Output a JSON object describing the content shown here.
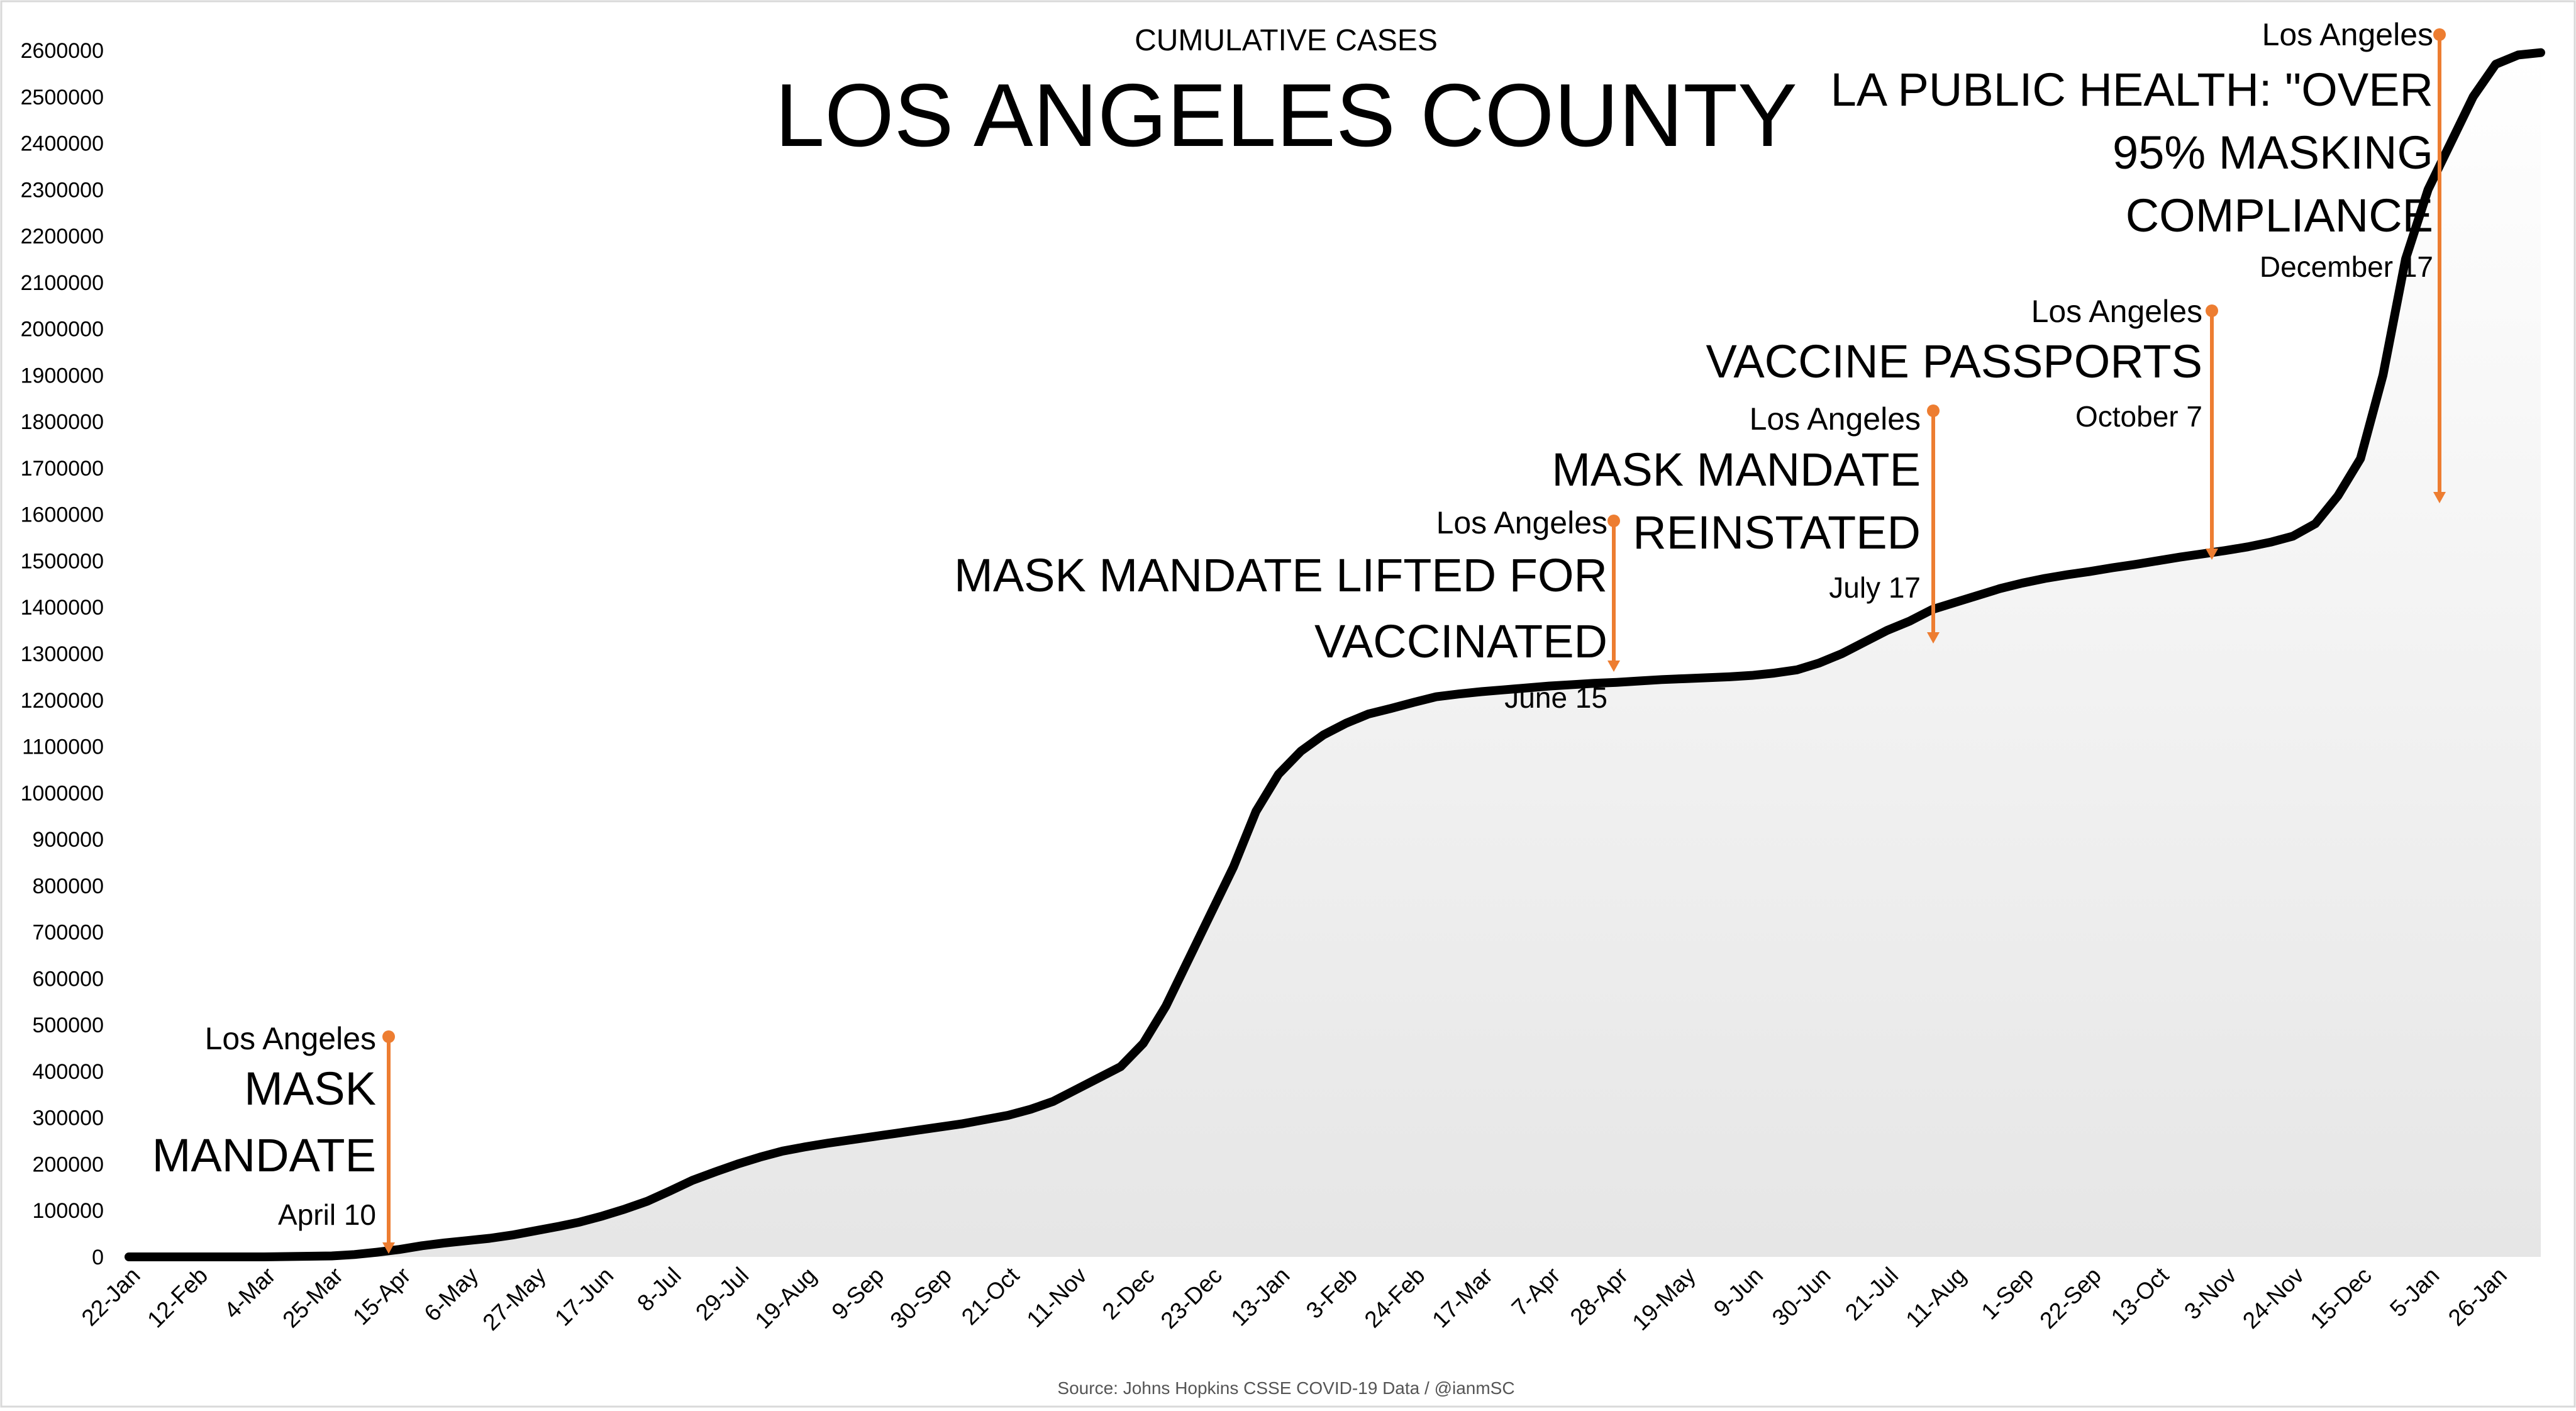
{
  "chart_data": {
    "type": "area",
    "subtitle": "CUMULATIVE CASES",
    "title": "LOS ANGELES COUNTY",
    "source": "Source: Johns Hopkins CSSE COVID-19 Data / @ianmSC",
    "xlabel": "",
    "ylabel": "",
    "ylim": [
      0,
      2600000
    ],
    "grid": false,
    "legend": "none",
    "x_ticks": [
      "22-Jan",
      "12-Feb",
      "4-Mar",
      "25-Mar",
      "15-Apr",
      "6-May",
      "27-May",
      "17-Jun",
      "8-Jul",
      "29-Jul",
      "19-Aug",
      "9-Sep",
      "30-Sep",
      "21-Oct",
      "11-Nov",
      "2-Dec",
      "23-Dec",
      "13-Jan",
      "3-Feb",
      "24-Feb",
      "17-Mar",
      "7-Apr",
      "28-Apr",
      "19-May",
      "9-Jun",
      "30-Jun",
      "21-Jul",
      "11-Aug",
      "1-Sep",
      "22-Sep",
      "13-Oct",
      "3-Nov",
      "24-Nov",
      "15-Dec",
      "5-Jan",
      "26-Jan"
    ],
    "y_ticks": [
      "0",
      "100000",
      "200000",
      "300000",
      "400000",
      "500000",
      "600000",
      "700000",
      "800000",
      "900000",
      "1000000",
      "1100000",
      "1200000",
      "1300000",
      "1400000",
      "1500000",
      "1600000",
      "1700000",
      "1800000",
      "1900000",
      "2000000",
      "2100000",
      "2200000",
      "2300000",
      "2400000",
      "2500000",
      "2600000"
    ],
    "series": [
      {
        "x": [
          0,
          21,
          42,
          63,
          70,
          77,
          84,
          91,
          98,
          105,
          112,
          119,
          126,
          133,
          140,
          147,
          154,
          161,
          168,
          175,
          182,
          189,
          196,
          203,
          210,
          217,
          224,
          231,
          238,
          245,
          252,
          259,
          266,
          273,
          280,
          287,
          294,
          301,
          308,
          315,
          322,
          329,
          336,
          343,
          350,
          357,
          364,
          371,
          378,
          385,
          392,
          399,
          406,
          413,
          420,
          427,
          434,
          441,
          448,
          455,
          462,
          469,
          476,
          483,
          490,
          497,
          504,
          511,
          518,
          525,
          532,
          539,
          546,
          553,
          560,
          567,
          574,
          581,
          588,
          595,
          602,
          609,
          616,
          623,
          630,
          637,
          644,
          651,
          658,
          665,
          672,
          679,
          686,
          693,
          700,
          707,
          714,
          721,
          728,
          735,
          742,
          749
        ],
        "values": [
          0,
          0,
          0,
          2000,
          5000,
          10000,
          16000,
          24000,
          30000,
          35000,
          40000,
          47000,
          56000,
          65000,
          75000,
          88000,
          103000,
          120000,
          142000,
          165000,
          183000,
          200000,
          215000,
          228000,
          237000,
          245000,
          252000,
          259000,
          266000,
          273000,
          280000,
          287000,
          296000,
          305000,
          318000,
          335000,
          360000,
          385000,
          410000,
          460000,
          540000,
          640000,
          740000,
          840000,
          960000,
          1040000,
          1090000,
          1125000,
          1150000,
          1170000,
          1182000,
          1195000,
          1207000,
          1213000,
          1218000,
          1222000,
          1226000,
          1230000,
          1233000,
          1236000,
          1238000,
          1241000,
          1244000,
          1246000,
          1248000,
          1250000,
          1253000,
          1258000,
          1265000,
          1280000,
          1300000,
          1325000,
          1350000,
          1370000,
          1395000,
          1410000,
          1425000,
          1440000,
          1452000,
          1462000,
          1470000,
          1477000,
          1485000,
          1492000,
          1500000,
          1508000,
          1515000,
          1522000,
          1530000,
          1540000,
          1553000,
          1580000,
          1640000,
          1720000,
          1900000,
          2150000,
          2300000,
          2400000,
          2500000,
          2570000,
          2590000,
          2595000
        ]
      }
    ],
    "annotations": [
      {
        "place": "Los Angeles",
        "headline": [
          "MASK",
          "MANDATE"
        ],
        "date": "April 10"
      },
      {
        "place": "Los Angeles",
        "headline": [
          "MASK MANDATE LIFTED FOR",
          "VACCINATED"
        ],
        "date": "June 15"
      },
      {
        "place": "Los Angeles",
        "headline": [
          "MASK MANDATE",
          "REINSTATED"
        ],
        "date": "July 17"
      },
      {
        "place": "Los Angeles",
        "headline": [
          "VACCINE PASSPORTS"
        ],
        "date": "October 7"
      },
      {
        "place": "Los Angeles",
        "headline": [
          "LA PUBLIC HEALTH: \"OVER",
          "95% MASKING",
          "COMPLIANCE"
        ],
        "date": "December 17"
      }
    ],
    "colors": {
      "line": "#000000",
      "area": "#e6e6e6",
      "annotation": "#ed7d31",
      "axis_text": "#000000"
    }
  }
}
